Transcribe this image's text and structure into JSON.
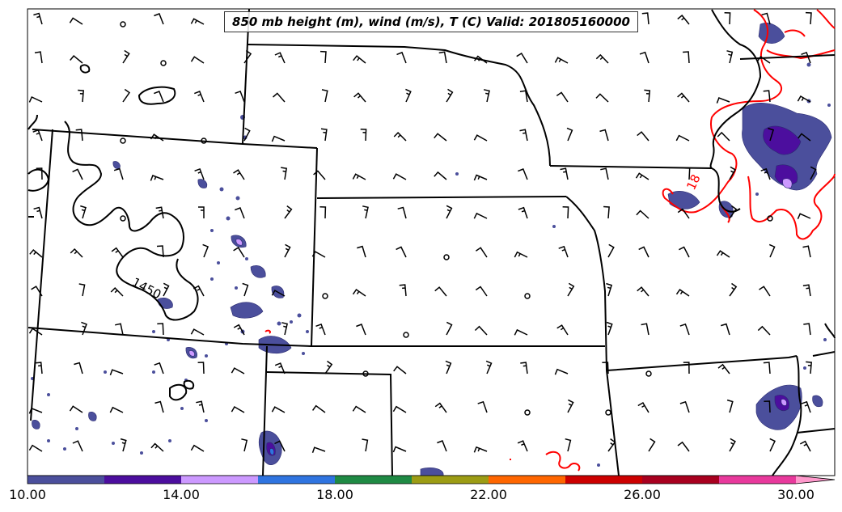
{
  "title": "850 mb height (m), wind (m/s), T (C) Valid: 201805160000",
  "contour_labels": {
    "height": "1450",
    "temperature": "18"
  },
  "colorbar": {
    "ticks": [
      "10.00",
      "14.00",
      "18.00",
      "22.00",
      "26.00",
      "30.00"
    ],
    "colors": [
      "#4b4f9c",
      "#4c0e9e",
      "#cc99ff",
      "#2f74e0",
      "#1f8a44",
      "#9c9c14",
      "#ff6600",
      "#cc0000",
      "#a8001f",
      "#e8399c",
      "#ff99cc"
    ]
  },
  "styles": {
    "temperature_contour_color": "#ff0000",
    "height_contour_color": "#000000",
    "border_color": "#000000"
  },
  "icons": [
    "wind-barb-icon",
    "calm-wind-circle-icon"
  ]
}
